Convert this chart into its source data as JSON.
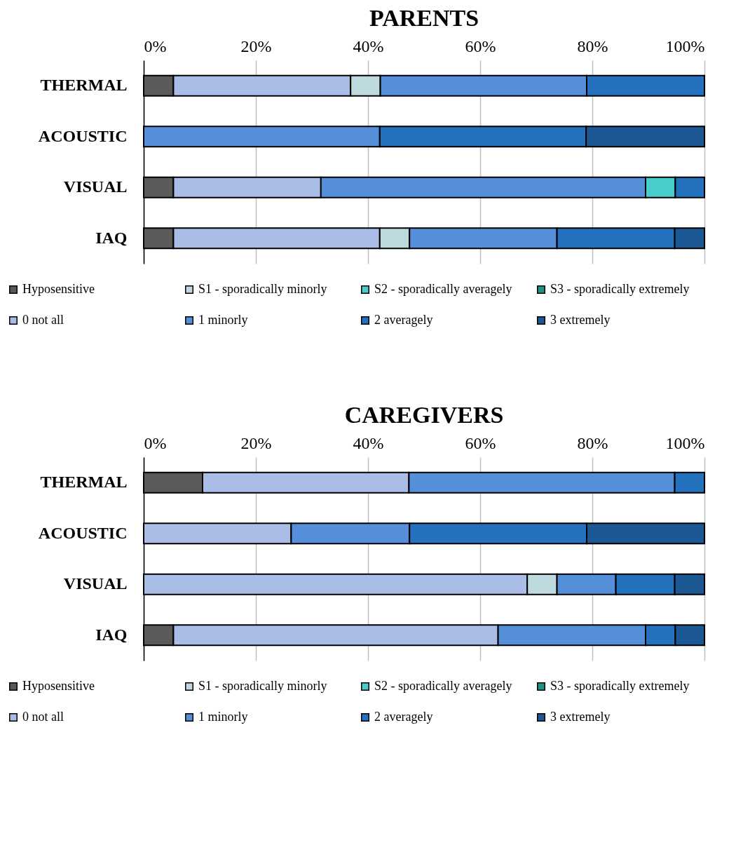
{
  "chart_data": [
    {
      "type": "bar",
      "orientation": "horizontal",
      "stacked": true,
      "title": "PARENTS",
      "categories": [
        "THERMAL",
        "ACOUSTIC",
        "VISUAL",
        "IAQ"
      ],
      "xlim": [
        0,
        100
      ],
      "xticks": [
        {
          "value": 0,
          "label": "0%"
        },
        {
          "value": 20,
          "label": "20%"
        },
        {
          "value": 40,
          "label": "40%"
        },
        {
          "value": 60,
          "label": "60%"
        },
        {
          "value": 80,
          "label": "80%"
        },
        {
          "value": 100,
          "label": "100%"
        }
      ],
      "grid": "x",
      "legend": "bottom",
      "series": [
        {
          "name": "Hyposensitive",
          "color": "#5a5a5a",
          "values": [
            5.3,
            null,
            5.3,
            5.3
          ]
        },
        {
          "name": "0 not all",
          "color": "#a9bde7",
          "values": [
            31.6,
            null,
            26.3,
            36.8
          ]
        },
        {
          "name": "S1 - sporadically minorly",
          "color": "#bfdade",
          "values": [
            5.3,
            null,
            null,
            5.3
          ]
        },
        {
          "name": "1 minorly",
          "color": "#558ed9",
          "values": [
            36.8,
            42.1,
            57.9,
            26.3
          ]
        },
        {
          "name": "S2 - sporadically averagely",
          "color": "#48cccc",
          "values": [
            null,
            null,
            5.3,
            null
          ]
        },
        {
          "name": "2 averagely",
          "color": "#2471bd",
          "values": [
            21.0,
            36.8,
            5.2,
            21.0
          ]
        },
        {
          "name": "S3 - sporadically extremely",
          "color": "#219489",
          "values": [
            null,
            null,
            null,
            null
          ]
        },
        {
          "name": "3 extremely",
          "color": "#1c5894",
          "values": [
            null,
            21.1,
            null,
            5.3
          ]
        }
      ]
    },
    {
      "type": "bar",
      "orientation": "horizontal",
      "stacked": true,
      "title": "CAREGIVERS",
      "categories": [
        "THERMAL",
        "ACOUSTIC",
        "VISUAL",
        "IAQ"
      ],
      "xlim": [
        0,
        100
      ],
      "xticks": [
        {
          "value": 0,
          "label": "0%"
        },
        {
          "value": 20,
          "label": "20%"
        },
        {
          "value": 40,
          "label": "40%"
        },
        {
          "value": 60,
          "label": "60%"
        },
        {
          "value": 80,
          "label": "80%"
        },
        {
          "value": 100,
          "label": "100%"
        }
      ],
      "grid": "x",
      "legend": "bottom",
      "series": [
        {
          "name": "Hyposensitive",
          "color": "#5a5a5a",
          "values": [
            10.5,
            null,
            null,
            5.3
          ]
        },
        {
          "name": "0 not all",
          "color": "#a9bde7",
          "values": [
            36.8,
            26.3,
            68.4,
            57.9
          ]
        },
        {
          "name": "S1 - sporadically minorly",
          "color": "#bfdade",
          "values": [
            null,
            null,
            5.3,
            null
          ]
        },
        {
          "name": "1 minorly",
          "color": "#558ed9",
          "values": [
            47.4,
            21.1,
            10.5,
            26.3
          ]
        },
        {
          "name": "S2 - sporadically averagely",
          "color": "#48cccc",
          "values": [
            null,
            null,
            null,
            null
          ]
        },
        {
          "name": "2 averagely",
          "color": "#2471bd",
          "values": [
            5.3,
            31.6,
            10.5,
            5.3
          ]
        },
        {
          "name": "S3 - sporadically extremely",
          "color": "#219489",
          "values": [
            null,
            null,
            null,
            null
          ]
        },
        {
          "name": "3 extremely",
          "color": "#1c5894",
          "values": [
            null,
            21.0,
            5.3,
            5.2
          ]
        }
      ]
    }
  ]
}
